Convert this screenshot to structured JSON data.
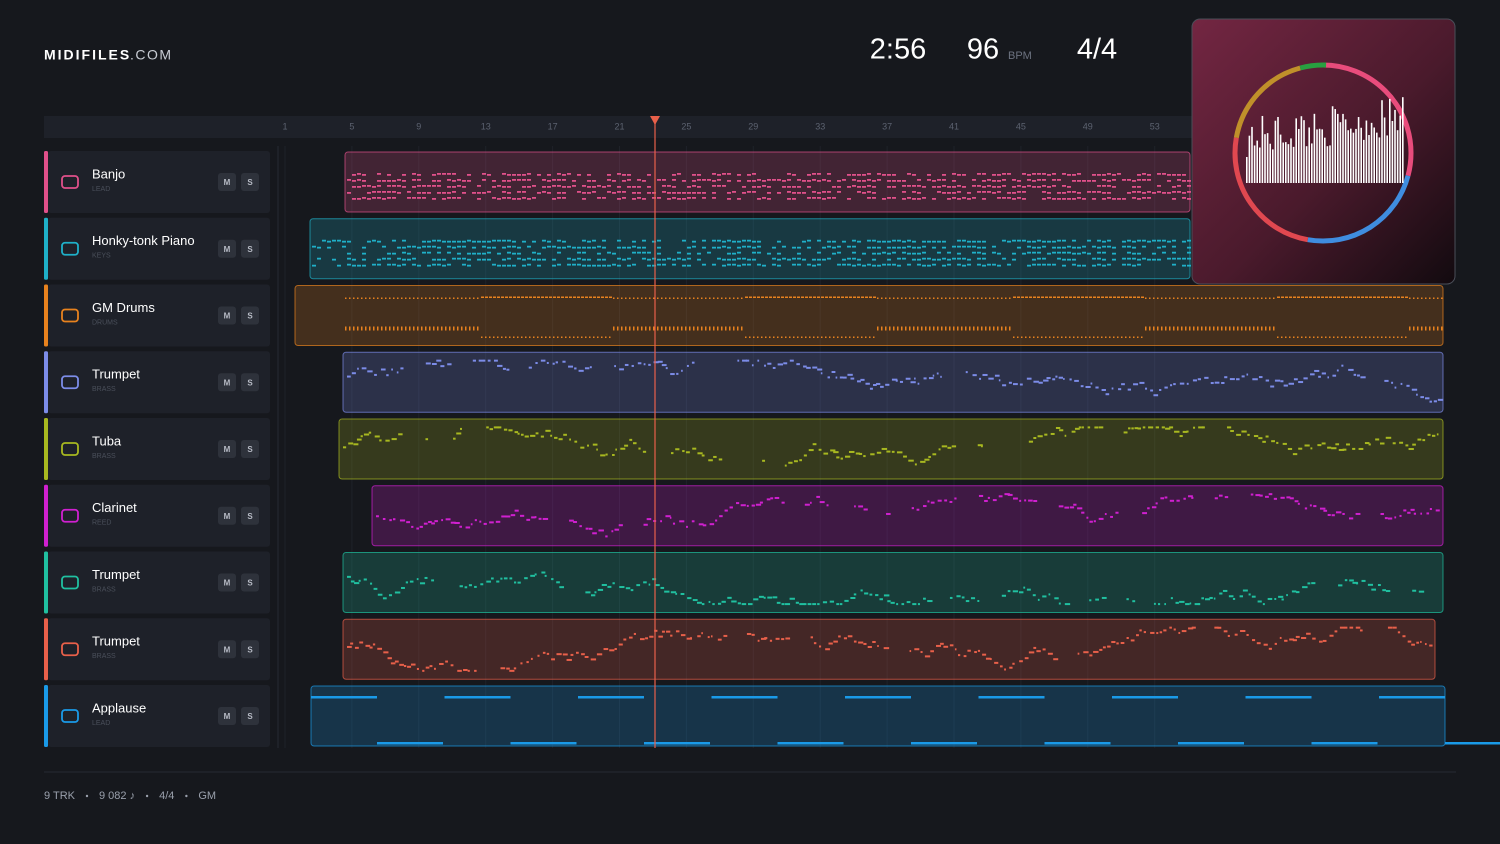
{
  "header": {
    "logo": "MIDIFILES",
    "logo_suffix": ".COM",
    "time": "2:56",
    "tempo": "96",
    "tempo_unit": "BPM",
    "time_signature": "4/4"
  },
  "ruler": {
    "bars": [
      1,
      5,
      9,
      13,
      17,
      21,
      25,
      29,
      33,
      37,
      41,
      45,
      49,
      53
    ]
  },
  "tracks": [
    {
      "name": "Banjo",
      "category": "LEAD",
      "color": "#e0508a"
    },
    {
      "name": "Honky-tonk Piano",
      "category": "KEYS",
      "color": "#1fb0c8"
    },
    {
      "name": "GM Drums",
      "category": "DRUMS",
      "color": "#e8821e"
    },
    {
      "name": "Trumpet",
      "category": "BRASS",
      "color": "#7c8ce8"
    },
    {
      "name": "Tuba",
      "category": "BRASS",
      "color": "#a8b820"
    },
    {
      "name": "Clarinet",
      "category": "REED",
      "color": "#d020d0"
    },
    {
      "name": "Trumpet",
      "category": "BRASS",
      "color": "#20c0a0"
    },
    {
      "name": "Trumpet",
      "category": "BRASS",
      "color": "#e8604a"
    },
    {
      "name": "Applause",
      "category": "LEAD",
      "color": "#1a9ae8"
    }
  ],
  "track_buttons": {
    "mute": "M",
    "solo": "S"
  },
  "footer": {
    "items": [
      "9 TRK",
      "9 082 ♪",
      "4/4",
      "GM"
    ]
  }
}
